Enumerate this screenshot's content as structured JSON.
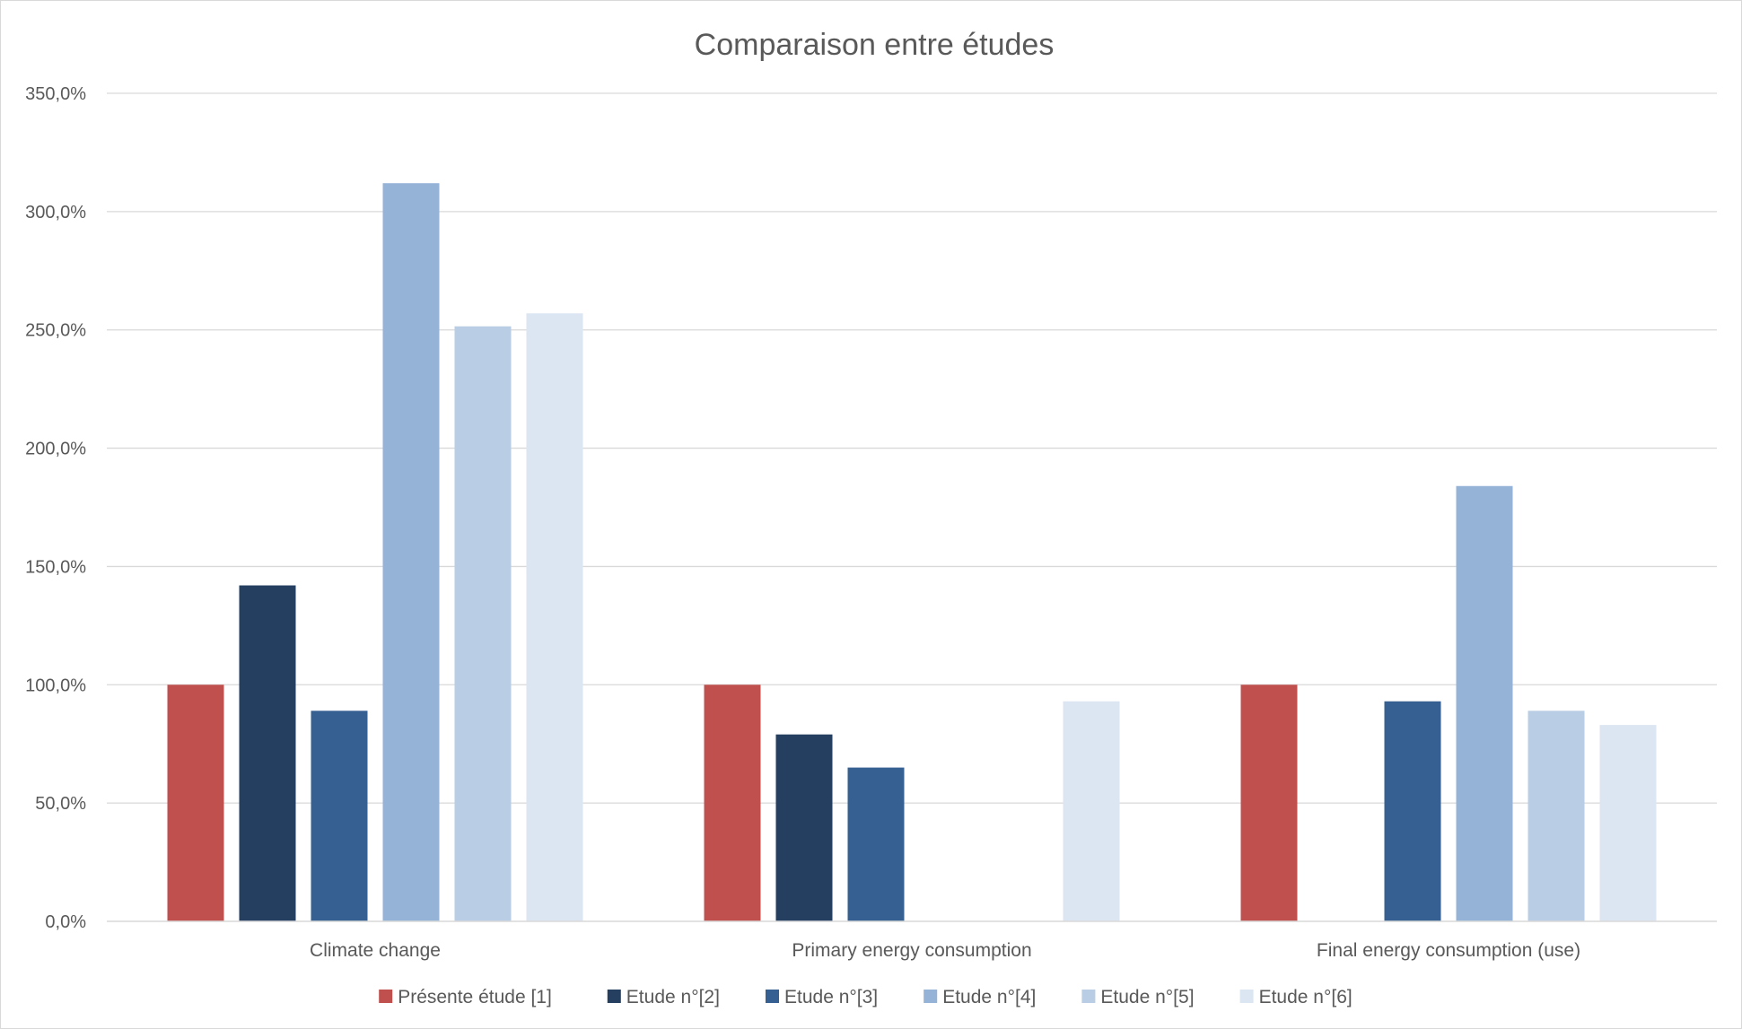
{
  "chart_data": {
    "type": "bar",
    "title": "Comparaison entre études",
    "xlabel": "",
    "ylabel": "",
    "ylim": [
      0,
      350
    ],
    "yticks": [
      0,
      50,
      100,
      150,
      200,
      250,
      300,
      350
    ],
    "ytick_labels": [
      "0,0%",
      "50,0%",
      "100,0%",
      "150,0%",
      "200,0%",
      "250,0%",
      "300,0%",
      "350,0%"
    ],
    "grid": true,
    "legend_position": "bottom",
    "categories": [
      "Climate change",
      "Primary energy consumption",
      "Final energy consumption (use)"
    ],
    "series": [
      {
        "name": "Présente étude [1]",
        "color": "#c0504d",
        "values": [
          100,
          100,
          100
        ]
      },
      {
        "name": "Etude n°[2]",
        "color": "#243f60",
        "values": [
          142,
          79,
          null
        ]
      },
      {
        "name": "Etude n°[3]",
        "color": "#366092",
        "values": [
          89,
          65,
          93
        ]
      },
      {
        "name": "Etude n°[4]",
        "color": "#95b3d7",
        "values": [
          312,
          null,
          184
        ]
      },
      {
        "name": "Etude n°[5]",
        "color": "#b9cde5",
        "values": [
          251.5,
          null,
          89
        ]
      },
      {
        "name": "Etude n°[6]",
        "color": "#dce6f2",
        "values": [
          257,
          93,
          83
        ]
      }
    ]
  }
}
